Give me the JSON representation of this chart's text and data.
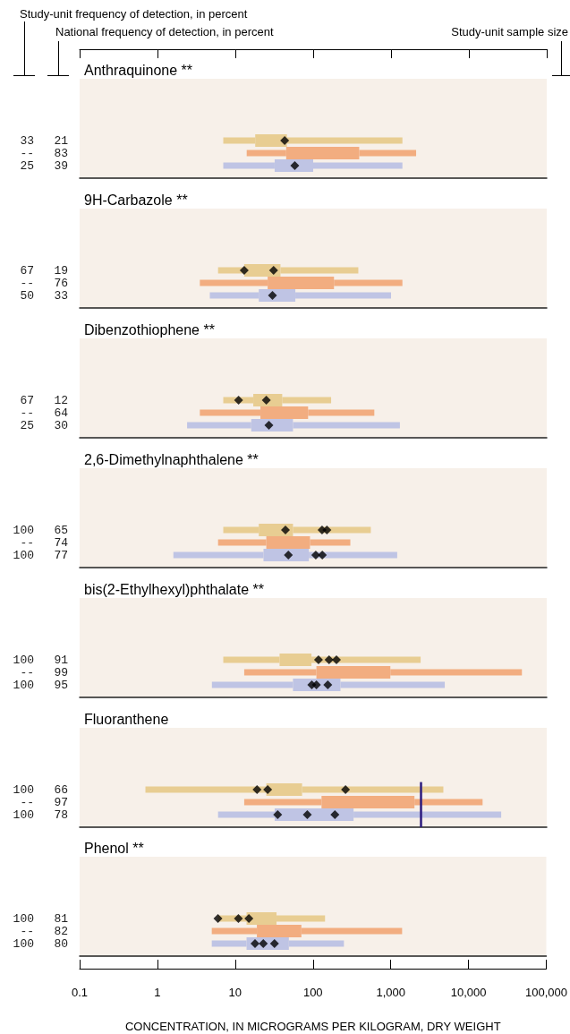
{
  "chart_data": [
    {
      "type": "box",
      "orientation": "horizontal",
      "title": "Anthraquinone **",
      "annotations": [
        "Study-unit frequency of detection, in percent",
        "National frequency of detection, in percent",
        "Study-unit sample size"
      ],
      "categories": [
        "21",
        "83",
        "39"
      ],
      "y2_categories": [
        "33",
        "--",
        "25"
      ],
      "log": "x",
      "xlim": [
        0.1,
        100000
      ],
      "xticks": [
        {
          "value": 0.1,
          "label": null
        },
        {
          "value": 1,
          "label": null
        },
        {
          "value": 10,
          "label": null
        },
        {
          "value": 100,
          "label": null
        },
        {
          "value": 1000,
          "label": null
        },
        {
          "value": 10000,
          "label": null
        },
        {
          "value": 100000,
          "label": null
        }
      ],
      "tick_labels": "y",
      "series": [
        {
          "type": "box",
          "colors": [
            "#e8cd92",
            "#f2ad80",
            "#bfc4e4"
          ],
          "boxes": [
            {
              "low": 7,
              "q1": 18,
              "q3": 46,
              "high": 1400
            },
            {
              "low": 14,
              "q1": 45,
              "q3": 390,
              "high": 2100
            },
            {
              "low": 7,
              "q1": 32,
              "q3": 100,
              "high": 1400
            }
          ]
        },
        {
          "type": "scatter",
          "color": "#000000",
          "marker": "diamond",
          "x": [
            "21",
            "39"
          ],
          "values": [
            43,
            58
          ]
        }
      ]
    },
    {
      "type": "box",
      "orientation": "horizontal",
      "title": "9H-Carbazole **",
      "categories": [
        "19",
        "76",
        "33"
      ],
      "y2_categories": [
        "67",
        "--",
        "50"
      ],
      "log": "x",
      "xlim": [
        0.1,
        100000
      ],
      "tick_labels": "y",
      "series": [
        {
          "type": "box",
          "colors": [
            "#e8cd92",
            "#f2ad80",
            "#bfc4e4"
          ],
          "boxes": [
            {
              "low": 6,
              "q1": 13,
              "q3": 38,
              "high": 380
            },
            {
              "low": 3.5,
              "q1": 26,
              "q3": 185,
              "high": 1400
            },
            {
              "low": 4.7,
              "q1": 20,
              "q3": 59,
              "high": 1000
            }
          ]
        },
        {
          "type": "scatter",
          "color": "#000000",
          "marker": "diamond",
          "x": [
            "19",
            "19",
            "33"
          ],
          "values": [
            13,
            31,
            30
          ]
        }
      ]
    },
    {
      "type": "box",
      "orientation": "horizontal",
      "title": "Dibenzothiophene **",
      "categories": [
        "12",
        "64",
        "30"
      ],
      "y2_categories": [
        "67",
        "--",
        "25"
      ],
      "log": "x",
      "xlim": [
        0.1,
        100000
      ],
      "tick_labels": "y",
      "series": [
        {
          "type": "box",
          "colors": [
            "#e8cd92",
            "#f2ad80",
            "#bfc4e4"
          ],
          "boxes": [
            {
              "low": 7,
              "q1": 17,
              "q3": 40,
              "high": 170
            },
            {
              "low": 3.5,
              "q1": 21,
              "q3": 86,
              "high": 610
            },
            {
              "low": 2.4,
              "q1": 16,
              "q3": 55,
              "high": 1300
            }
          ]
        },
        {
          "type": "scatter",
          "color": "#000000",
          "marker": "diamond",
          "x": [
            "12",
            "12",
            "30"
          ],
          "values": [
            11,
            25,
            27
          ]
        }
      ]
    },
    {
      "type": "box",
      "orientation": "horizontal",
      "title": "2,6-Dimethylnaphthalene **",
      "categories": [
        "65",
        "74",
        "77"
      ],
      "y2_categories": [
        "100",
        "--",
        "100"
      ],
      "log": "x",
      "xlim": [
        0.1,
        100000
      ],
      "tick_labels": "y",
      "series": [
        {
          "type": "box",
          "colors": [
            "#e8cd92",
            "#f2ad80",
            "#bfc4e4"
          ],
          "boxes": [
            {
              "low": 7,
              "q1": 20,
              "q3": 55,
              "high": 550
            },
            {
              "low": 6,
              "q1": 25,
              "q3": 91,
              "high": 300
            },
            {
              "low": 1.6,
              "q1": 23,
              "q3": 88,
              "high": 1200
            }
          ]
        },
        {
          "type": "scatter",
          "color": "#000000",
          "marker": "diamond",
          "x": [
            "65",
            "65",
            "65",
            "77",
            "77",
            "77"
          ],
          "values": [
            44,
            130,
            150,
            48,
            108,
            131
          ]
        }
      ]
    },
    {
      "type": "box",
      "orientation": "horizontal",
      "title": "bis(2-Ethylhexyl)phthalate **",
      "categories": [
        "91",
        "99",
        "95"
      ],
      "y2_categories": [
        "100",
        "--",
        "100"
      ],
      "log": "x",
      "xlim": [
        0.1,
        100000
      ],
      "tick_labels": "y",
      "series": [
        {
          "type": "box",
          "colors": [
            "#e8cd92",
            "#f2ad80",
            "#bfc4e4"
          ],
          "boxes": [
            {
              "low": 7,
              "q1": 37,
              "q3": 95,
              "high": 2400
            },
            {
              "low": 13,
              "q1": 110,
              "q3": 980,
              "high": 48000
            },
            {
              "low": 5,
              "q1": 55,
              "q3": 224,
              "high": 4900
            }
          ]
        },
        {
          "type": "scatter",
          "color": "#000000",
          "marker": "diamond",
          "x": [
            "91",
            "91",
            "91",
            "95",
            "95",
            "95"
          ],
          "values": [
            117,
            160,
            199,
            96,
            110,
            154
          ]
        }
      ]
    },
    {
      "type": "box",
      "orientation": "horizontal",
      "title": "Fluoranthene",
      "categories": [
        "66",
        "97",
        "78"
      ],
      "y2_categories": [
        "100",
        "--",
        "100"
      ],
      "log": "x",
      "xlim": [
        0.1,
        100000
      ],
      "tick_labels": "y",
      "ref_lines": [
        {
          "axis": "x",
          "value": 2400,
          "color": "#2d1b7e"
        }
      ],
      "series": [
        {
          "type": "box",
          "colors": [
            "#e8cd92",
            "#f2ad80",
            "#bfc4e4"
          ],
          "boxes": [
            {
              "low": 0.7,
              "q1": 25,
              "q3": 72,
              "high": 4700
            },
            {
              "low": 13,
              "q1": 128,
              "q3": 2000,
              "high": 15000
            },
            {
              "low": 6,
              "q1": 32,
              "q3": 330,
              "high": 26000
            }
          ]
        },
        {
          "type": "scatter",
          "color": "#000000",
          "marker": "diamond",
          "x": [
            "66",
            "66",
            "66",
            "78",
            "78",
            "78"
          ],
          "values": [
            19,
            26,
            260,
            35,
            84,
            190
          ]
        }
      ]
    },
    {
      "type": "box",
      "orientation": "horizontal",
      "title": "Phenol **",
      "xlabel": "CONCENTRATION, IN MICROGRAMS PER KILOGRAM, DRY WEIGHT",
      "categories": [
        "81",
        "82",
        "80"
      ],
      "y2_categories": [
        "100",
        "--",
        "100"
      ],
      "log": "x",
      "xlim": [
        0.1,
        100000
      ],
      "xticks": [
        0.1,
        1,
        10,
        100,
        {
          "value": 1000,
          "label": "1,000"
        },
        {
          "value": 10000,
          "label": "10,000"
        },
        {
          "value": 100000,
          "label": "100,000"
        }
      ],
      "series": [
        {
          "type": "box",
          "colors": [
            "#e8cd92",
            "#f2ad80",
            "#bfc4e4"
          ],
          "boxes": [
            {
              "low": 6,
              "q1": 14,
              "q3": 34,
              "high": 143
            },
            {
              "low": 5,
              "q1": 19,
              "q3": 71,
              "high": 1400
            },
            {
              "low": 5,
              "q1": 14,
              "q3": 49,
              "high": 250
            }
          ]
        },
        {
          "type": "scatter",
          "color": "#000000",
          "marker": "diamond",
          "x": [
            "81",
            "81",
            "81",
            "80",
            "80",
            "80"
          ],
          "values": [
            6,
            11,
            15,
            18,
            23,
            32
          ]
        }
      ]
    }
  ]
}
